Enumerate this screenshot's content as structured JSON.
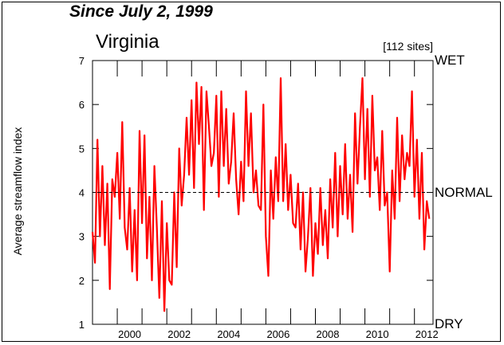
{
  "header": {
    "subtitle": "Since July 2, 1999",
    "title": "Virginia",
    "sites": "[112 sites]"
  },
  "levels": {
    "wet": "WET",
    "normal": "NORMAL",
    "dry": "DRY"
  },
  "colors": {
    "series": "#ff0000",
    "reference": "#000000",
    "axis": "#000000"
  },
  "chart_data": {
    "type": "line",
    "title": "Virginia",
    "subtitle": "Since July 2, 1999",
    "ylabel": "Average streamflow index",
    "xlabel": "",
    "xlim": [
      1999.0,
      2012.75
    ],
    "ylim": [
      1,
      7
    ],
    "yticks": [
      1,
      2,
      3,
      4,
      5,
      6,
      7
    ],
    "xticks": [
      2000,
      2002,
      2004,
      2006,
      2008,
      2010,
      2012
    ],
    "reference_line": {
      "y": 4,
      "label": "NORMAL",
      "style": "dashed"
    },
    "level_labels": [
      {
        "y": 7,
        "label": "WET"
      },
      {
        "y": 4,
        "label": "NORMAL"
      },
      {
        "y": 1,
        "label": "DRY"
      }
    ],
    "annotation": "[112 sites]",
    "series": [
      {
        "values_x": [
          1999.0,
          1999.1,
          1999.2,
          1999.3,
          1999.4,
          1999.5,
          1999.6,
          1999.7,
          1999.8,
          1999.9,
          2000.0,
          2000.1,
          2000.2,
          2000.3,
          2000.4,
          2000.5,
          2000.6,
          2000.7,
          2000.8,
          2000.9,
          2001.0,
          2001.1,
          2001.2,
          2001.3,
          2001.4,
          2001.5,
          2001.6,
          2001.7,
          2001.8,
          2001.9,
          2002.0,
          2002.1,
          2002.2,
          2002.3,
          2002.4,
          2002.5,
          2002.6,
          2002.7,
          2002.8,
          2002.9,
          2003.0,
          2003.1,
          2003.2,
          2003.3,
          2003.4,
          2003.5,
          2003.6,
          2003.7,
          2003.8,
          2003.9,
          2004.0,
          2004.1,
          2004.2,
          2004.3,
          2004.4,
          2004.5,
          2004.6,
          2004.7,
          2004.8,
          2004.9,
          2005.0,
          2005.1,
          2005.2,
          2005.3,
          2005.4,
          2005.5,
          2005.6,
          2005.7,
          2005.8,
          2005.9,
          2006.0,
          2006.1,
          2006.2,
          2006.3,
          2006.4,
          2006.5,
          2006.6,
          2006.7,
          2006.8,
          2006.9,
          2007.0,
          2007.1,
          2007.2,
          2007.3,
          2007.4,
          2007.5,
          2007.6,
          2007.7,
          2007.8,
          2007.9,
          2008.0,
          2008.1,
          2008.2,
          2008.3,
          2008.4,
          2008.5,
          2008.6,
          2008.7,
          2008.8,
          2008.9,
          2009.0,
          2009.1,
          2009.2,
          2009.3,
          2009.4,
          2009.5,
          2009.6,
          2009.7,
          2009.8,
          2009.9,
          2010.0,
          2010.1,
          2010.2,
          2010.3,
          2010.4,
          2010.5,
          2010.6,
          2010.7,
          2010.8,
          2010.9,
          2011.0,
          2011.1,
          2011.2,
          2011.3,
          2011.4,
          2011.5,
          2011.6,
          2011.7,
          2011.8,
          2011.9,
          2012.0,
          2012.1,
          2012.2,
          2012.3,
          2012.4,
          2012.5,
          2012.6
        ],
        "values_y": [
          3.1,
          2.4,
          5.2,
          3.0,
          4.6,
          2.8,
          4.2,
          1.8,
          4.3,
          3.9,
          4.9,
          3.4,
          5.6,
          3.2,
          2.7,
          4.1,
          2.2,
          3.6,
          2.0,
          5.4,
          3.3,
          5.3,
          2.5,
          3.9,
          2.0,
          4.6,
          3.2,
          1.6,
          3.8,
          1.3,
          3.3,
          2.0,
          1.9,
          4.0,
          2.3,
          5.0,
          3.7,
          4.4,
          5.7,
          4.4,
          6.1,
          4.1,
          6.5,
          5.1,
          6.4,
          3.6,
          6.3,
          5.5,
          4.6,
          4.9,
          6.2,
          3.9,
          6.3,
          4.6,
          5.9,
          4.2,
          4.7,
          5.8,
          4.3,
          3.5,
          4.7,
          3.8,
          6.3,
          4.6,
          5.8,
          4.0,
          4.5,
          3.7,
          3.6,
          6.0,
          3.0,
          2.1,
          4.5,
          3.4,
          4.8,
          3.8,
          6.6,
          3.8,
          5.1,
          3.6,
          4.4,
          3.3,
          3.2,
          4.2,
          2.7,
          4.0,
          2.2,
          3.0,
          4.1,
          2.1,
          3.3,
          2.6,
          4.1,
          2.8,
          3.6,
          2.5,
          4.3,
          3.2,
          4.9,
          3.0,
          4.6,
          3.5,
          5.1,
          3.4,
          4.4,
          3.1,
          5.8,
          4.2,
          5.5,
          6.6,
          4.3,
          5.9,
          3.9,
          6.2,
          4.5,
          4.8,
          3.6,
          5.4,
          3.7,
          4.0,
          2.2,
          4.5,
          3.4,
          5.7,
          3.8,
          5.3,
          4.3,
          4.9,
          4.6,
          6.3,
          3.9,
          5.2,
          3.4,
          4.9,
          2.7,
          3.8,
          3.4
        ]
      }
    ]
  }
}
